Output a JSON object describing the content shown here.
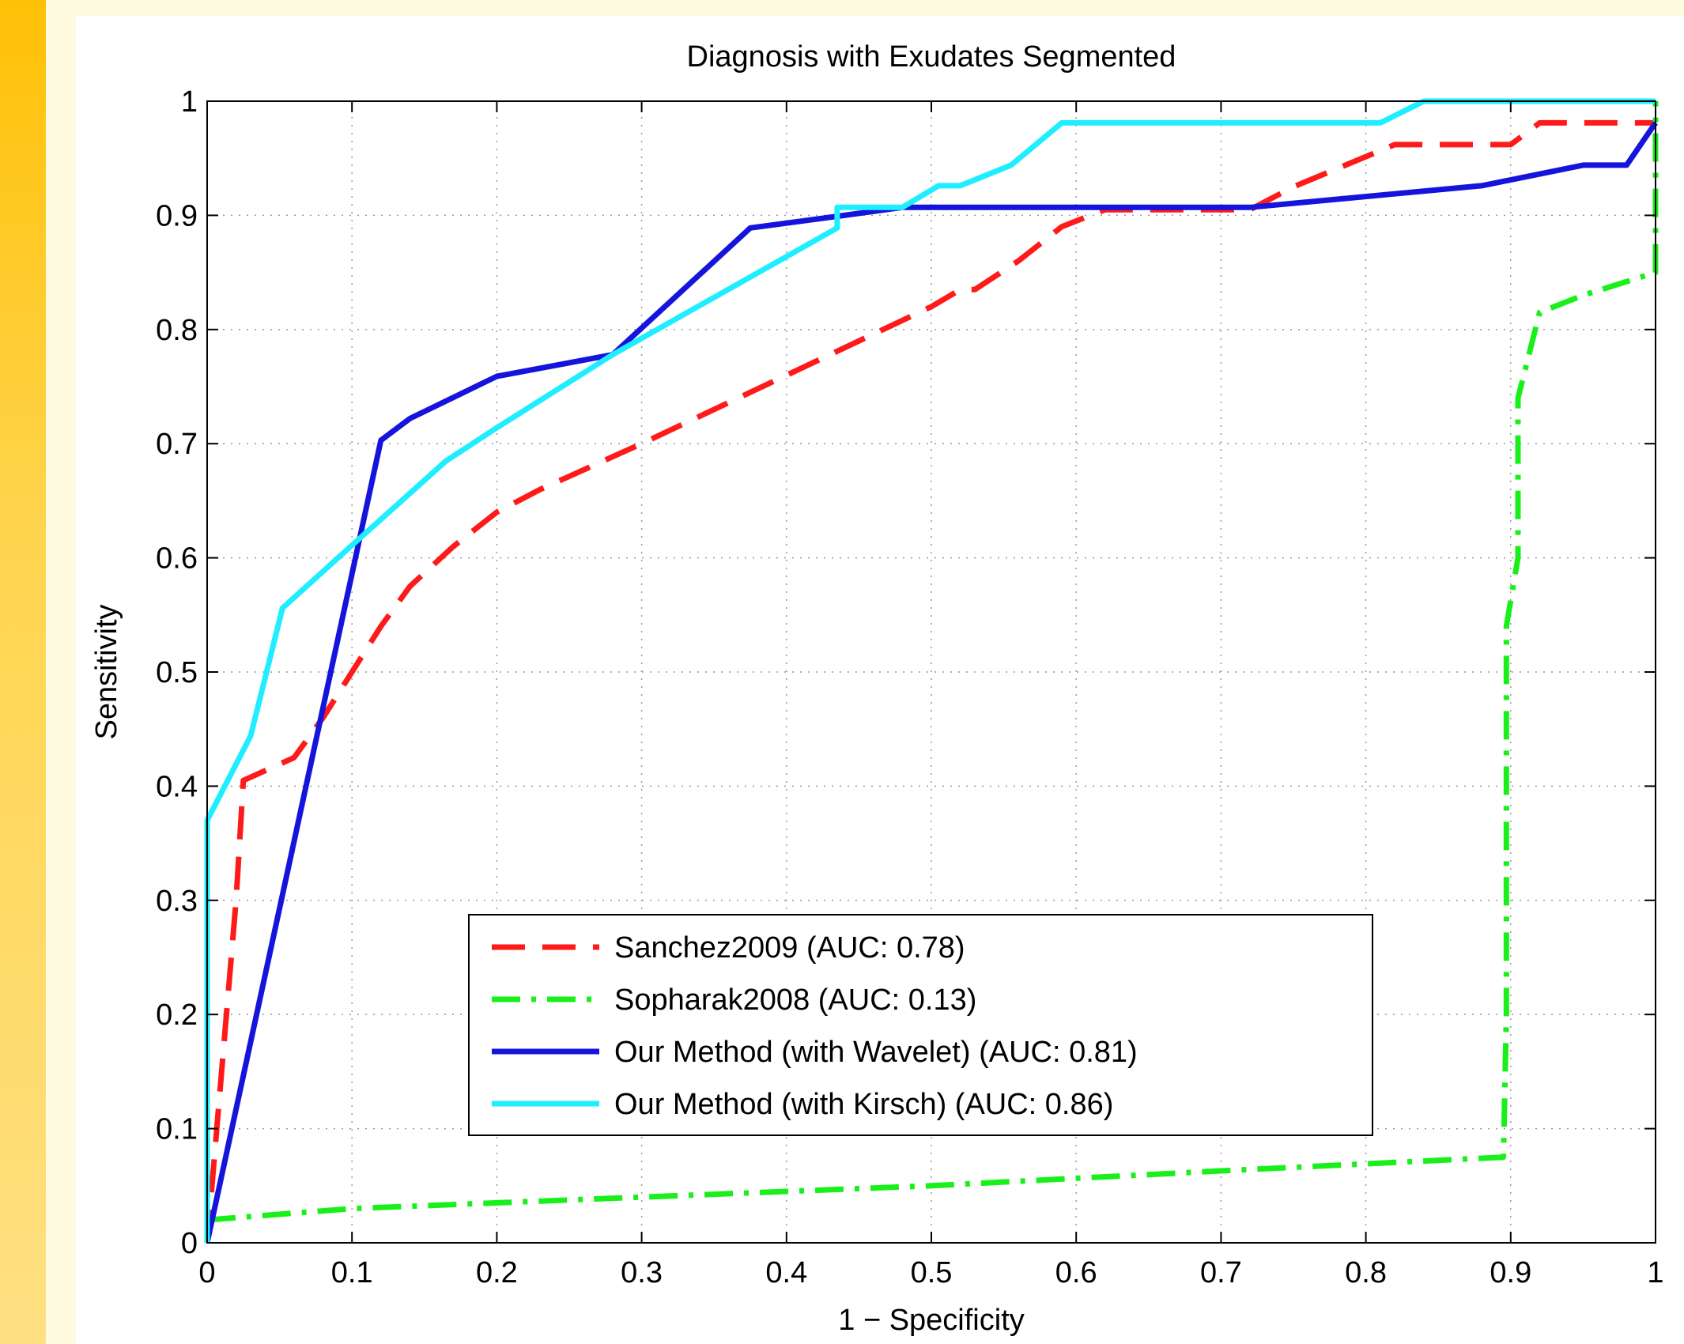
{
  "theme": {
    "stripe_color": "#ffc107",
    "background": "#fffbe0"
  },
  "chart_data": {
    "type": "line",
    "title": "Diagnosis with Exudates Segmented",
    "xlabel": "1 − Specificity",
    "ylabel": "Sensitivity",
    "xlim": [
      0,
      1
    ],
    "ylim": [
      0,
      1
    ],
    "xticks": [
      "0",
      "0.1",
      "0.2",
      "0.3",
      "0.4",
      "0.5",
      "0.6",
      "0.7",
      "0.8",
      "0.9",
      "1"
    ],
    "yticks": [
      "0",
      "0.1",
      "0.2",
      "0.3",
      "0.4",
      "0.5",
      "0.6",
      "0.7",
      "0.8",
      "0.9",
      "1"
    ],
    "grid": true,
    "legend_position": "bottom-center",
    "series": [
      {
        "name": "Sanchez2009 (AUC: 0.78)",
        "color": "#ff1a1a",
        "style": "dashed",
        "x": [
          0,
          0.02,
          0.025,
          0.06,
          0.08,
          0.1,
          0.12,
          0.14,
          0.17,
          0.2,
          0.23,
          0.3,
          0.4,
          0.5,
          0.52,
          0.53,
          0.56,
          0.59,
          0.62,
          0.7,
          0.72,
          0.75,
          0.82,
          0.9,
          0.92,
          1
        ],
        "y": [
          0,
          0.3,
          0.405,
          0.425,
          0.46,
          0.5,
          0.54,
          0.575,
          0.61,
          0.64,
          0.66,
          0.7,
          0.76,
          0.82,
          0.835,
          0.835,
          0.86,
          0.89,
          0.905,
          0.905,
          0.905,
          0.925,
          0.962,
          0.962,
          0.981,
          0.981
        ]
      },
      {
        "name": "Sopharak2008 (AUC: 0.13)",
        "color": "#19f019",
        "style": "dashdot",
        "x": [
          0,
          0.1,
          0.3,
          0.5,
          0.7,
          0.895,
          0.897,
          0.897,
          0.905,
          0.905,
          0.92,
          0.95,
          1,
          1
        ],
        "y": [
          0.02,
          0.03,
          0.04,
          0.05,
          0.063,
          0.075,
          0.2,
          0.54,
          0.6,
          0.74,
          0.815,
          0.83,
          0.85,
          1
        ]
      },
      {
        "name": "Our Method (with Wavelet) (AUC: 0.81)",
        "color": "#1414dc",
        "style": "solid",
        "x": [
          0,
          0.12,
          0.14,
          0.2,
          0.28,
          0.375,
          0.44,
          0.48,
          0.72,
          0.88,
          0.95,
          0.98,
          1
        ],
        "y": [
          0,
          0.703,
          0.722,
          0.759,
          0.778,
          0.889,
          0.9,
          0.907,
          0.907,
          0.926,
          0.944,
          0.944,
          0.981
        ]
      },
      {
        "name": "Our Method (with Kirsch) (AUC: 0.86)",
        "color": "#1eeeff",
        "style": "solid",
        "x": [
          0,
          0,
          0.03,
          0.052,
          0.1,
          0.165,
          0.2,
          0.28,
          0.435,
          0.435,
          0.48,
          0.505,
          0.52,
          0.555,
          0.59,
          0.81,
          0.84,
          1
        ],
        "y": [
          0,
          0.37,
          0.444,
          0.556,
          0.611,
          0.685,
          0.714,
          0.778,
          0.889,
          0.907,
          0.907,
          0.926,
          0.926,
          0.944,
          0.981,
          0.981,
          1,
          1
        ]
      }
    ]
  }
}
